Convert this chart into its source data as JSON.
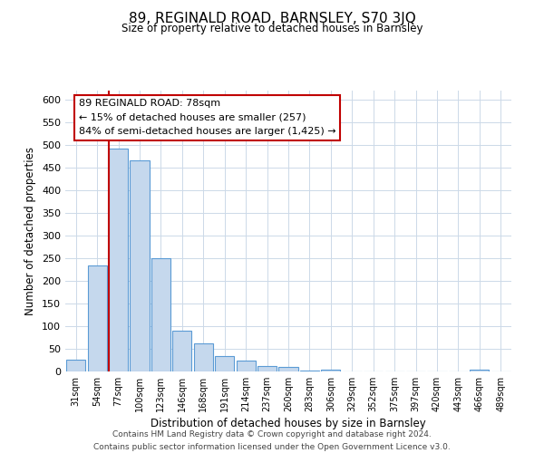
{
  "title": "89, REGINALD ROAD, BARNSLEY, S70 3JQ",
  "subtitle": "Size of property relative to detached houses in Barnsley",
  "xlabel": "Distribution of detached houses by size in Barnsley",
  "ylabel": "Number of detached properties",
  "bar_labels": [
    "31sqm",
    "54sqm",
    "77sqm",
    "100sqm",
    "123sqm",
    "146sqm",
    "168sqm",
    "191sqm",
    "214sqm",
    "237sqm",
    "260sqm",
    "283sqm",
    "306sqm",
    "329sqm",
    "352sqm",
    "375sqm",
    "397sqm",
    "420sqm",
    "443sqm",
    "466sqm",
    "489sqm"
  ],
  "bar_values": [
    27,
    235,
    492,
    467,
    250,
    90,
    62,
    34,
    24,
    13,
    10,
    3,
    5,
    0,
    0,
    0,
    0,
    0,
    0,
    5,
    0
  ],
  "bar_color": "#c5d8ed",
  "bar_edge_color": "#5b9bd5",
  "highlight_line_color": "#c00000",
  "annotation_title": "89 REGINALD ROAD: 78sqm",
  "annotation_line1": "← 15% of detached houses are smaller (257)",
  "annotation_line2": "84% of semi-detached houses are larger (1,425) →",
  "annotation_box_color": "#ffffff",
  "annotation_box_edge": "#c00000",
  "ylim": [
    0,
    620
  ],
  "yticks": [
    0,
    50,
    100,
    150,
    200,
    250,
    300,
    350,
    400,
    450,
    500,
    550,
    600
  ],
  "footer_line1": "Contains HM Land Registry data © Crown copyright and database right 2024.",
  "footer_line2": "Contains public sector information licensed under the Open Government Licence v3.0.",
  "fig_width": 6.0,
  "fig_height": 5.0,
  "bg_color": "#ffffff",
  "grid_color": "#ccd9e8"
}
